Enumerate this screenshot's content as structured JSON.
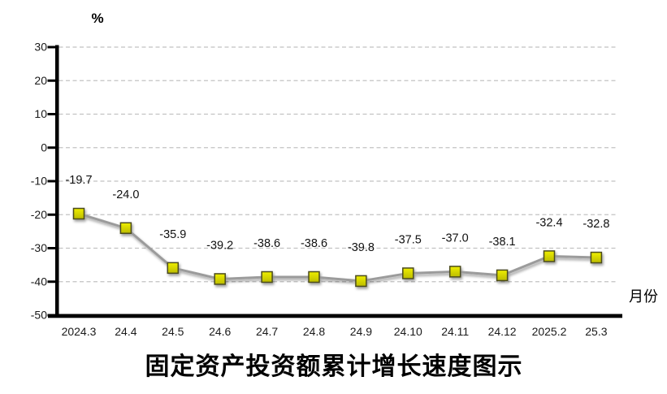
{
  "chart_data": {
    "type": "line",
    "title": "固定资产投资额累计增长速度图示",
    "y_unit_label": "%",
    "x_axis_label": "月份",
    "categories": [
      "2024.3",
      "24.4",
      "24.5",
      "24.6",
      "24.7",
      "24.8",
      "24.9",
      "24.10",
      "24.11",
      "24.12",
      "2025.2",
      "25.3"
    ],
    "values": [
      -19.7,
      -24.0,
      -35.9,
      -39.2,
      -38.6,
      -38.6,
      -39.8,
      -37.5,
      -37.0,
      -38.1,
      -32.4,
      -32.8
    ],
    "data_labels": [
      "-19.7",
      "-24.0",
      "-35.9",
      "-39.2",
      "-38.6",
      "-38.6",
      "-39.8",
      "-37.5",
      "-37.0",
      "-38.1",
      "-32.4",
      "-32.8"
    ],
    "y_ticks": [
      30,
      20,
      10,
      0,
      -10,
      -20,
      -30,
      -40,
      -50
    ],
    "ylim": [
      -50,
      30
    ],
    "grid": "horizontal-dashed",
    "legend": "none",
    "marker": "square",
    "colors": {
      "line": "#9b9b9b",
      "marker_fill": "#efef00",
      "marker_fill_dark": "#bcbc00",
      "marker_border": "#4c4c1e",
      "gridline": "#c2c2c2",
      "axis": "#000000",
      "label_text": "#1a1a1a"
    }
  }
}
